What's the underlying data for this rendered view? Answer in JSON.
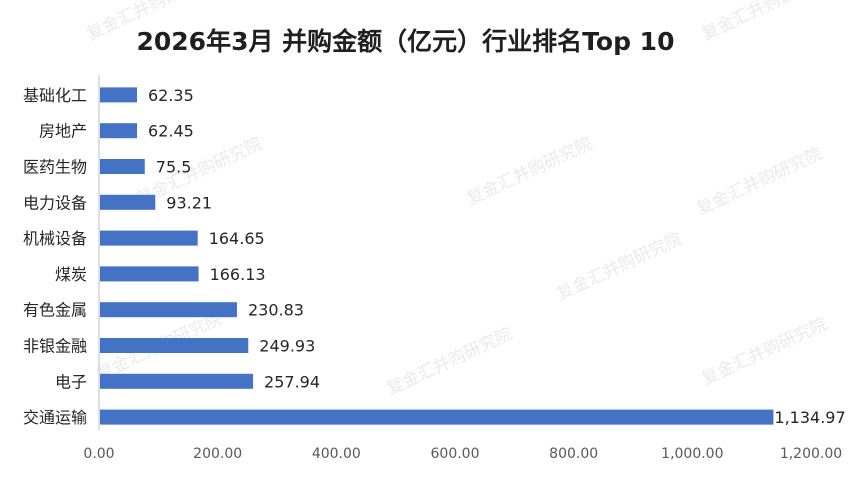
{
  "chart_data": {
    "type": "bar",
    "orientation": "horizontal",
    "title": "2026年3月 并购金额（亿元）行业排名Top 10",
    "categories": [
      "基础化工",
      "房地产",
      "医药生物",
      "电力设备",
      "机械设备",
      "煤炭",
      "有色金属",
      "非银金融",
      "电子",
      "交通运输"
    ],
    "values": [
      62.35,
      62.45,
      75.5,
      93.21,
      164.65,
      166.13,
      230.83,
      249.93,
      257.94,
      1134.97
    ],
    "data_labels": [
      "62.35",
      "62.45",
      "75.5",
      "93.21",
      "164.65",
      "166.13",
      "230.83",
      "249.93",
      "257.94",
      "1,134.97"
    ],
    "xlim": [
      0,
      1200
    ],
    "xticks": [
      0,
      200,
      400,
      600,
      800,
      1000,
      1200
    ],
    "xtick_labels": [
      "0.00",
      "200.00",
      "400.00",
      "600.00",
      "800.00",
      "1,000.00",
      "1,200.00"
    ],
    "grid": false,
    "bar_color": "#4472C4"
  },
  "watermark": "复金汇并购研究院"
}
